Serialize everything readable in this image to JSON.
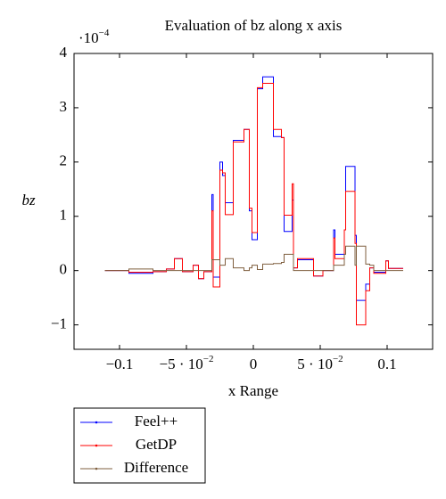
{
  "chart_data": {
    "type": "line",
    "title": "Evaluation of bz along x axis",
    "y_multiplier": {
      "base": "·10",
      "exponent": "−4"
    },
    "xlabel": "x Range",
    "ylabel": "bz",
    "xlim": [
      -0.134,
      0.134
    ],
    "ylim": [
      -1.45,
      4
    ],
    "xticks": [
      {
        "value": -0.1,
        "label": "−0.1"
      },
      {
        "value": -0.05,
        "label": "−5 · 10",
        "exponent": "−2"
      },
      0,
      {
        "value": 0.05,
        "label": "5 · 10",
        "exponent": "−2"
      },
      0.1
    ],
    "yticks": [
      {
        "value": -1,
        "label": "−1"
      },
      0,
      1,
      2,
      3,
      4
    ],
    "legend": "below-left",
    "x": [
      -0.111,
      -0.093,
      -0.093,
      -0.075,
      -0.075,
      -0.065,
      -0.065,
      -0.059,
      -0.059,
      -0.053,
      -0.053,
      -0.045,
      -0.045,
      -0.041,
      -0.041,
      -0.037,
      -0.037,
      -0.031,
      -0.031,
      -0.03,
      -0.03,
      -0.025,
      -0.025,
      -0.023,
      -0.023,
      -0.021,
      -0.021,
      -0.015,
      -0.015,
      -0.007,
      -0.007,
      -0.003,
      -0.003,
      -0.001,
      -0.001,
      0.003,
      0.003,
      0.007,
      0.007,
      0.015,
      0.015,
      0.021,
      0.021,
      0.023,
      0.023,
      0.029,
      0.029,
      0.03,
      0.03,
      0.033,
      0.033,
      0.045,
      0.045,
      0.052,
      0.052,
      0.06,
      0.06,
      0.061,
      0.061,
      0.068,
      0.068,
      0.069,
      0.069,
      0.076,
      0.076,
      0.077,
      0.077,
      0.084,
      0.084,
      0.087,
      0.087,
      0.09,
      0.09,
      0.099,
      0.099,
      0.101,
      0.101,
      0.112
    ],
    "series": [
      {
        "name": "Feel++",
        "color": "#0000ff",
        "values": [
          0,
          0,
          -0.05,
          -0.05,
          -0.02,
          -0.02,
          0.03,
          0.03,
          0.22,
          0.22,
          -0.02,
          -0.02,
          0.1,
          0.1,
          -0.15,
          -0.15,
          -0.02,
          -0.02,
          1.4,
          1.4,
          -0.12,
          -0.12,
          2.0,
          2.0,
          1.75,
          1.75,
          1.25,
          1.25,
          2.4,
          2.4,
          2.6,
          2.6,
          1.1,
          1.1,
          0.57,
          0.57,
          3.35,
          3.35,
          3.57,
          3.57,
          2.47,
          2.47,
          2.45,
          2.45,
          0.72,
          0.72,
          1.3,
          1.3,
          0.05,
          0.05,
          0.2,
          0.2,
          -0.1,
          -0.1,
          0,
          0,
          0.75,
          0.75,
          0.3,
          0.3,
          0.75,
          0.75,
          1.92,
          1.92,
          0.65,
          0.65,
          -0.55,
          -0.55,
          -0.25,
          -0.25,
          0.05,
          0.05,
          -0.03,
          -0.03,
          0.18,
          0.18,
          0.04,
          0.04
        ]
      },
      {
        "name": "GetDP",
        "color": "#ff0000",
        "values": [
          0,
          0,
          -0.03,
          -0.03,
          -0.02,
          -0.02,
          0.03,
          0.03,
          0.22,
          0.22,
          -0.02,
          -0.02,
          0.1,
          0.1,
          -0.15,
          -0.15,
          -0.02,
          -0.02,
          1.1,
          1.1,
          -0.3,
          -0.3,
          1.85,
          1.85,
          1.8,
          1.8,
          1.03,
          1.03,
          2.37,
          2.37,
          2.6,
          2.6,
          1.15,
          1.15,
          0.7,
          0.7,
          3.37,
          3.37,
          3.45,
          3.45,
          2.6,
          2.6,
          2.45,
          2.45,
          1.02,
          1.02,
          1.6,
          1.6,
          0.05,
          0.05,
          0.22,
          0.22,
          -0.1,
          -0.1,
          0,
          0,
          0.6,
          0.6,
          0.22,
          0.22,
          0.75,
          0.75,
          1.46,
          1.46,
          0.5,
          0.5,
          -1.0,
          -1.0,
          -0.37,
          -0.37,
          0.05,
          0.05,
          -0.05,
          -0.05,
          0.18,
          0.18,
          0.04,
          0.04
        ]
      },
      {
        "name": "Difference",
        "color": "#7f5f3f",
        "values": [
          0,
          0,
          0.03,
          0.03,
          0,
          0,
          0,
          0,
          0,
          0,
          0,
          0,
          0,
          0,
          0,
          0,
          0,
          0,
          0.2,
          0.2,
          0.2,
          0.2,
          0.1,
          0.1,
          0.1,
          0.1,
          0.22,
          0.22,
          0.05,
          0.05,
          0,
          0,
          0.05,
          0.05,
          0.1,
          0.1,
          0.02,
          0.02,
          0.12,
          0.12,
          0.13,
          0.13,
          0.15,
          0.15,
          0.3,
          0.3,
          0.3,
          0.3,
          0,
          0,
          0,
          0,
          0,
          0,
          0,
          0,
          0.1,
          0.1,
          0.1,
          0.1,
          0.3,
          0.3,
          0.45,
          0.45,
          0.1,
          0.1,
          0.45,
          0.45,
          0.12,
          0.12,
          0.1,
          0.1,
          0,
          0,
          0,
          0,
          0,
          0
        ]
      }
    ]
  }
}
